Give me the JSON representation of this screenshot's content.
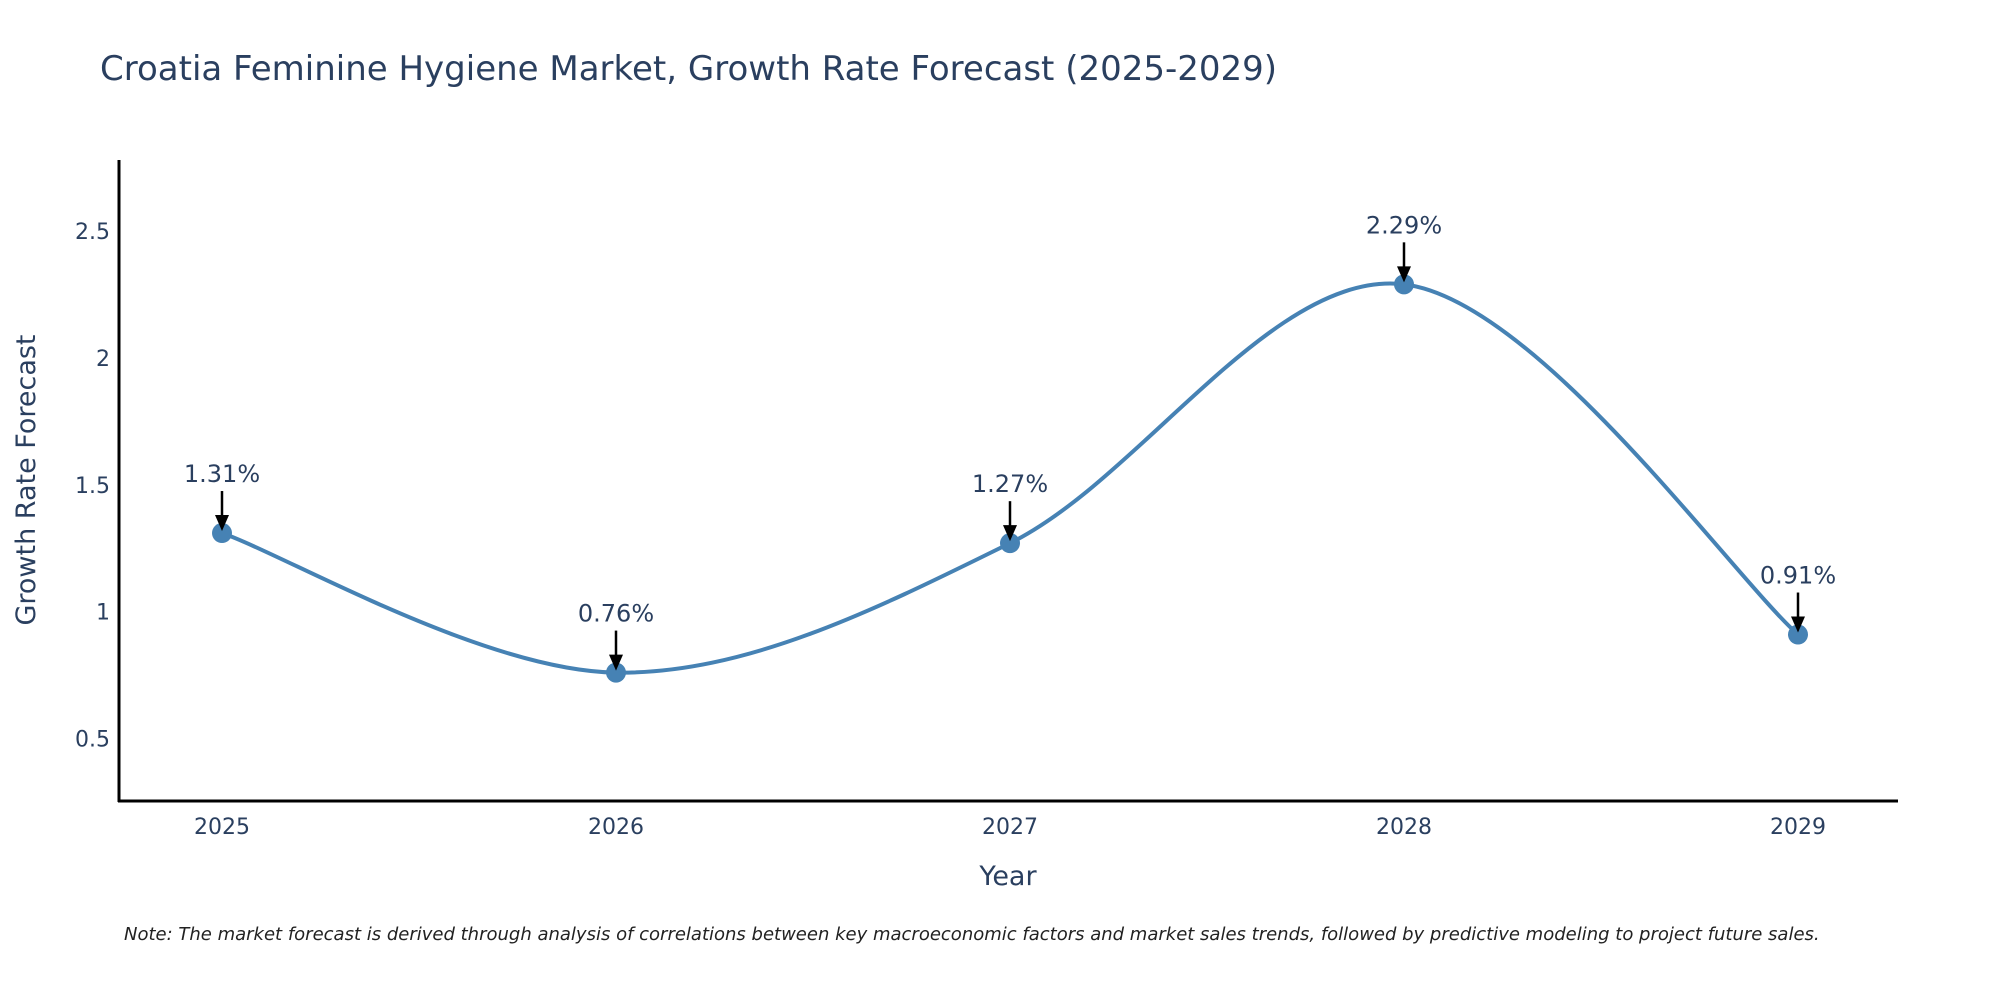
{
  "chart_data": {
    "type": "line",
    "title": "Croatia Feminine Hygiene Market, Growth Rate Forecast (2025-2029)",
    "xlabel": "Year",
    "ylabel": "Growth Rate Forecast",
    "categories": [
      "2025",
      "2026",
      "2027",
      "2028",
      "2029"
    ],
    "series": [
      {
        "name": "Growth Rate Forecast",
        "values": [
          1.31,
          0.76,
          1.27,
          2.29,
          0.91
        ],
        "labels": [
          "1.31%",
          "0.76%",
          "1.27%",
          "2.29%",
          "0.91%"
        ],
        "color": "#4682b4"
      }
    ],
    "ylim": [
      0.25,
      2.78
    ],
    "yticks": [
      0.5,
      1,
      1.5,
      2,
      2.5
    ],
    "ytick_labels": [
      "0.5",
      "1",
      "1.5",
      "2",
      "2.5"
    ],
    "grid": false,
    "line_shape": "spline",
    "note": "Note: The market forecast is derived through analysis of correlations between key macroeconomic factors and market sales trends, followed by predictive modeling to project future sales."
  },
  "colors": {
    "line": "#4682b4",
    "marker": "#4682b4",
    "axis": "#000000",
    "text": "#2a3f5f",
    "arrow": "#000000"
  }
}
